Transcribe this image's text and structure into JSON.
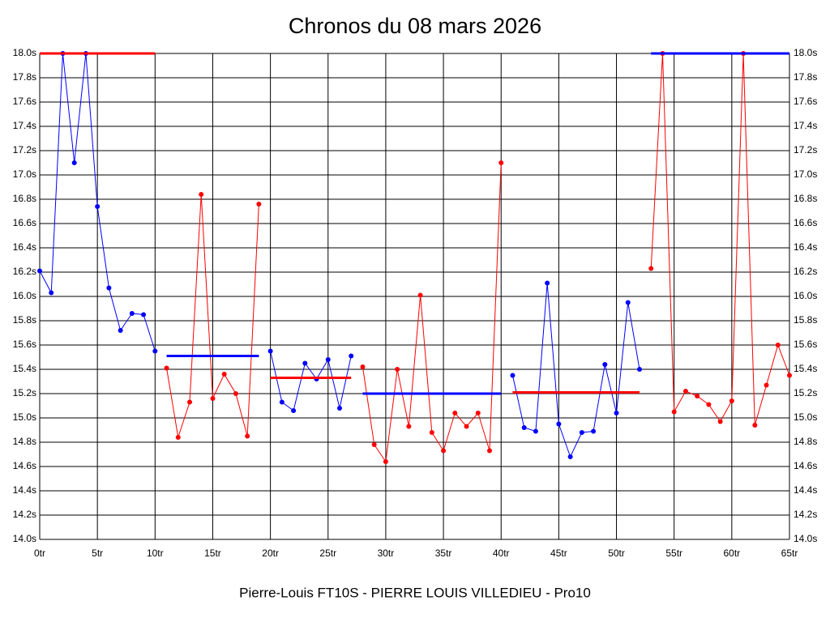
{
  "chart_data": {
    "type": "line",
    "title": "Chronos du 08 mars 2026",
    "x_label": "Pierre-Louis FT10S - PIERRE LOUIS VILLEDIEU - Pro10",
    "xlim": [
      0,
      65
    ],
    "ylim": [
      14.0,
      18.0
    ],
    "grid": true,
    "xticks": [
      {
        "value": 0,
        "label": "0tr"
      },
      {
        "value": 5,
        "label": "5tr"
      },
      {
        "value": 10,
        "label": "10tr"
      },
      {
        "value": 15,
        "label": "15tr"
      },
      {
        "value": 20,
        "label": "20tr"
      },
      {
        "value": 25,
        "label": "25tr"
      },
      {
        "value": 30,
        "label": "30tr"
      },
      {
        "value": 35,
        "label": "35tr"
      },
      {
        "value": 40,
        "label": "40tr"
      },
      {
        "value": 45,
        "label": "45tr"
      },
      {
        "value": 50,
        "label": "50tr"
      },
      {
        "value": 55,
        "label": "55tr"
      },
      {
        "value": 60,
        "label": "60tr"
      },
      {
        "value": 65,
        "label": "65tr"
      }
    ],
    "yticks": [
      {
        "value": 14.0,
        "label": "14.0s"
      },
      {
        "value": 14.2,
        "label": "14.2s"
      },
      {
        "value": 14.4,
        "label": "14.4s"
      },
      {
        "value": 14.6,
        "label": "14.6s"
      },
      {
        "value": 14.8,
        "label": "14.8s"
      },
      {
        "value": 15.0,
        "label": "15.0s"
      },
      {
        "value": 15.2,
        "label": "15.2s"
      },
      {
        "value": 15.4,
        "label": "15.4s"
      },
      {
        "value": 15.6,
        "label": "15.6s"
      },
      {
        "value": 15.8,
        "label": "15.8s"
      },
      {
        "value": 16.0,
        "label": "16.0s"
      },
      {
        "value": 16.2,
        "label": "16.2s"
      },
      {
        "value": 16.4,
        "label": "16.4s"
      },
      {
        "value": 16.6,
        "label": "16.6s"
      },
      {
        "value": 16.8,
        "label": "16.8s"
      },
      {
        "value": 17.0,
        "label": "17.0s"
      },
      {
        "value": 17.2,
        "label": "17.2s"
      },
      {
        "value": 17.4,
        "label": "17.4s"
      },
      {
        "value": 17.6,
        "label": "17.6s"
      },
      {
        "value": 17.8,
        "label": "17.8s"
      },
      {
        "value": 18.0,
        "label": "18.0s"
      }
    ],
    "series": [
      {
        "color": "#0000ff",
        "avg_color": "#ff0000",
        "avg": 18.0,
        "x": [
          0,
          1,
          2,
          3,
          4,
          5,
          6,
          7,
          8,
          9,
          10
        ],
        "values": [
          16.21,
          16.03,
          18.0,
          17.1,
          18.0,
          16.74,
          16.07,
          15.72,
          15.86,
          15.85,
          15.55
        ]
      },
      {
        "color": "#ff0000",
        "avg_color": "#0000ff",
        "avg": 15.51,
        "x": [
          11,
          12,
          13,
          14,
          15,
          16,
          17,
          18,
          19
        ],
        "values": [
          15.41,
          14.84,
          15.13,
          16.84,
          15.16,
          15.36,
          15.2,
          14.85,
          16.76
        ]
      },
      {
        "color": "#0000ff",
        "avg_color": "#ff0000",
        "avg": 15.33,
        "x": [
          20,
          21,
          22,
          23,
          24,
          25,
          26,
          27
        ],
        "values": [
          15.55,
          15.13,
          15.06,
          15.45,
          15.32,
          15.48,
          15.08,
          15.51
        ]
      },
      {
        "color": "#ff0000",
        "avg_color": "#0000ff",
        "avg": 15.2,
        "x": [
          28,
          29,
          30,
          31,
          32,
          33,
          34,
          35,
          36,
          37,
          38,
          39,
          40
        ],
        "values": [
          15.42,
          14.78,
          14.64,
          15.4,
          14.93,
          16.01,
          14.88,
          14.73,
          15.04,
          14.93,
          15.04,
          14.73,
          17.1
        ]
      },
      {
        "color": "#0000ff",
        "avg_color": "#ff0000",
        "avg": 15.21,
        "x": [
          41,
          42,
          43,
          44,
          45,
          46,
          47,
          48,
          49,
          50,
          51,
          52
        ],
        "values": [
          15.35,
          14.92,
          14.89,
          16.11,
          14.95,
          14.68,
          14.88,
          14.89,
          15.44,
          15.04,
          15.95,
          15.4
        ]
      },
      {
        "color": "#ff0000",
        "avg_color": "#0000ff",
        "avg": 18.0,
        "x": [
          53,
          54,
          55,
          56,
          57,
          58,
          59,
          60,
          61,
          62,
          63,
          64,
          65
        ],
        "values": [
          16.23,
          18.0,
          15.05,
          15.22,
          15.18,
          15.11,
          14.97,
          15.14,
          18.0,
          14.94,
          15.27,
          15.6,
          15.35
        ]
      }
    ]
  }
}
